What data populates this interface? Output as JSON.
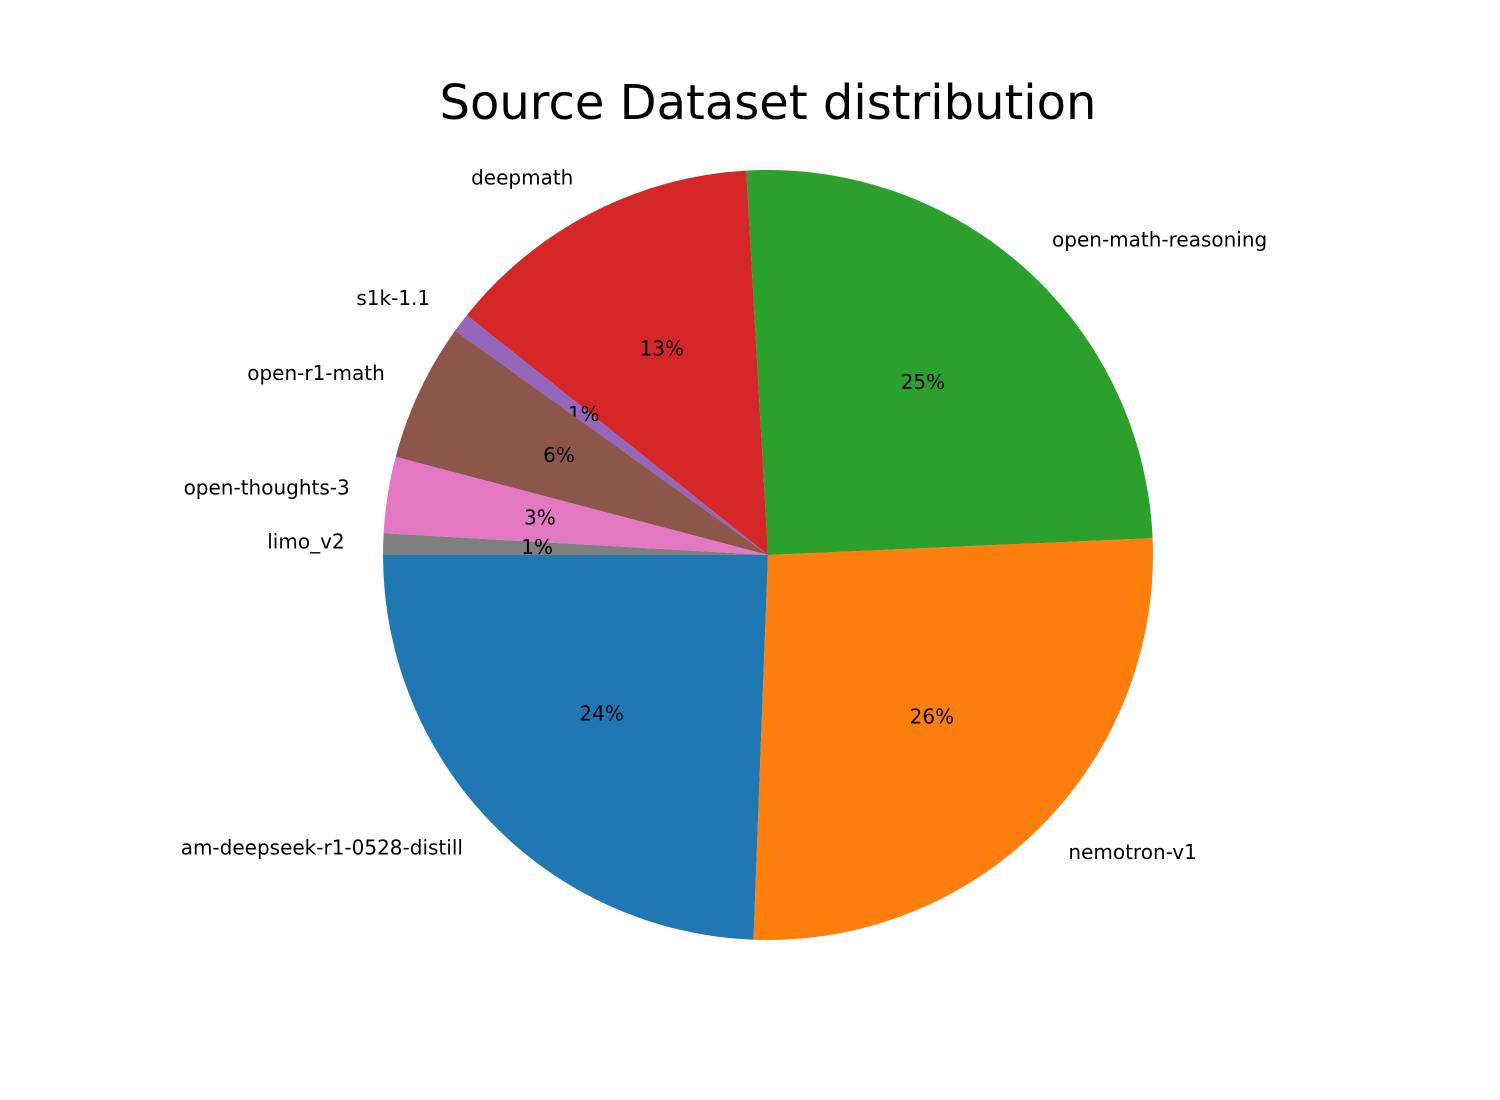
{
  "chart_data": {
    "type": "pie",
    "title": "Source Dataset distribution",
    "categories": [
      "am-deepseek-r1-0528-distill",
      "nemotron-v1",
      "open-math-reasoning",
      "deepmath",
      "s1k-1.1",
      "open-r1-math",
      "open-thoughts-3",
      "limo_v2"
    ],
    "values": [
      24.4,
      26.3,
      25.2,
      13.4,
      0.8,
      5.8,
      3.2,
      0.9
    ],
    "value_labels": [
      "24%",
      "26%",
      "25%",
      "13%",
      "1%",
      "6%",
      "3%",
      "1%"
    ],
    "colors": [
      "#1f77b4",
      "#ff7f0e",
      "#2ca02c",
      "#d62728",
      "#9467bd",
      "#8c564b",
      "#e377c2",
      "#7f7f7f"
    ],
    "start_angle": 180
  }
}
